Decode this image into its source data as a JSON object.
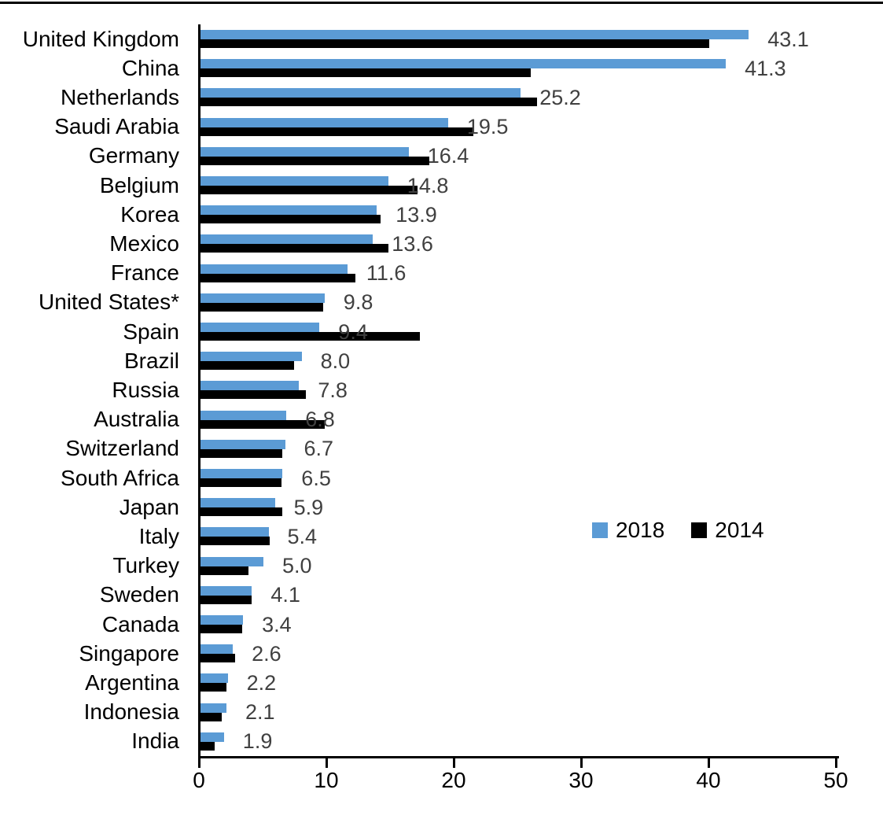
{
  "chart_data": {
    "type": "bar",
    "orientation": "horizontal",
    "title": "",
    "xlabel": "",
    "ylabel": "",
    "xlim": [
      0,
      50
    ],
    "x_ticks": [
      0,
      10,
      20,
      30,
      40,
      50
    ],
    "grid": false,
    "legend_position": "middle-right",
    "value_label_color": "#404040",
    "categories": [
      "United Kingdom",
      "China",
      "Netherlands",
      "Saudi Arabia",
      "Germany",
      "Belgium",
      "Korea",
      "Mexico",
      "France",
      "United States*",
      "Spain",
      "Brazil",
      "Russia",
      "Australia",
      "Switzerland",
      "South Africa",
      "Japan",
      "Italy",
      "Turkey",
      "Sweden",
      "Canada",
      "Singapore",
      "Argentina",
      "Indonesia",
      "India"
    ],
    "series": [
      {
        "name": "2018",
        "color": "#5B9BD5",
        "values": [
          43.1,
          41.3,
          25.2,
          19.5,
          16.4,
          14.8,
          13.9,
          13.6,
          11.6,
          9.8,
          9.4,
          8.0,
          7.8,
          6.8,
          6.7,
          6.5,
          5.9,
          5.4,
          5.0,
          4.1,
          3.4,
          2.6,
          2.2,
          2.1,
          1.9
        ],
        "data_labels": [
          "43.1",
          "41.3",
          "25.2",
          "19.5",
          "16.4",
          "14.8",
          "13.9",
          "13.6",
          "11.6",
          "9.8",
          "9.4",
          "8.0",
          "7.8",
          "6.8",
          "6.7",
          "6.5",
          "5.9",
          "5.4",
          "5.0",
          "4.1",
          "3.4",
          "2.6",
          "2.2",
          "2.1",
          "1.9"
        ]
      },
      {
        "name": "2014",
        "color": "#000000",
        "values": [
          40.0,
          26.0,
          26.5,
          21.5,
          18.0,
          17.1,
          14.2,
          14.8,
          12.2,
          9.7,
          17.3,
          7.4,
          8.3,
          9.8,
          6.5,
          6.4,
          6.5,
          5.5,
          3.8,
          4.1,
          3.3,
          2.8,
          2.1,
          1.7,
          1.2
        ]
      }
    ]
  }
}
